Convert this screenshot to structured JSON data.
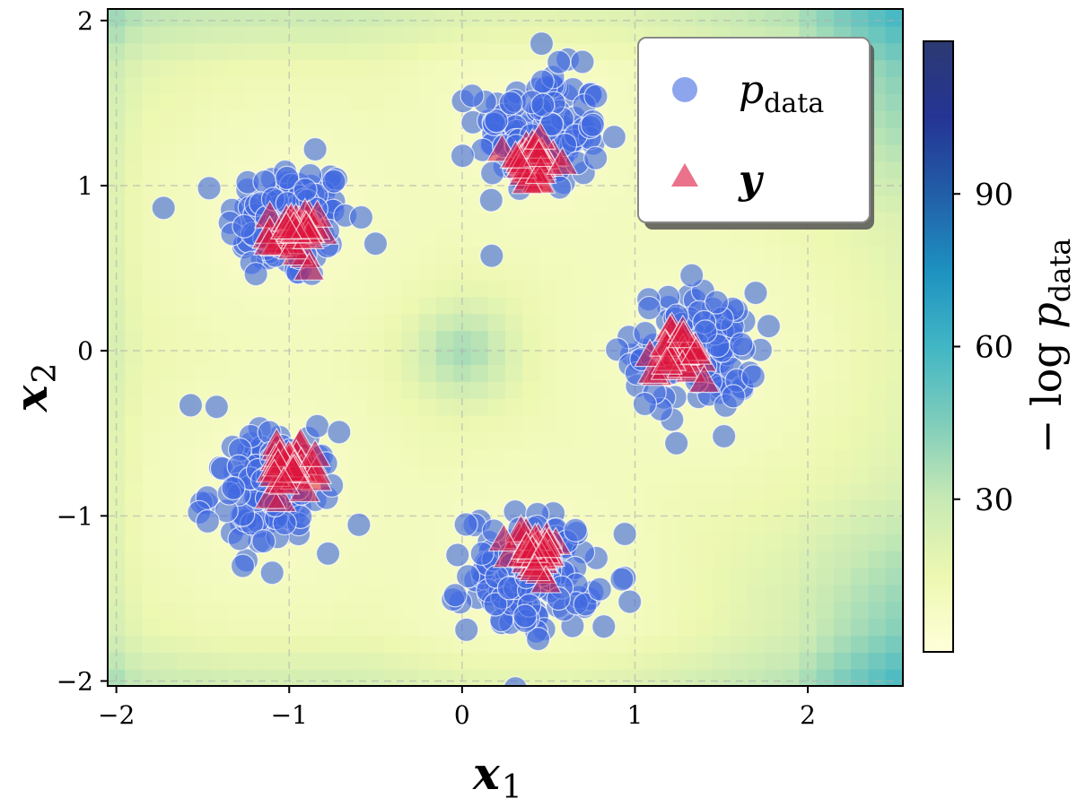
{
  "chart_data": {
    "type": "scatter",
    "xlabel": "x",
    "xlabel_sub": "1",
    "ylabel": "x",
    "ylabel_sub": "2",
    "xlim": [
      -2.05,
      2.55
    ],
    "ylim": [
      -2.03,
      2.07
    ],
    "xticks": [
      -2,
      -1,
      0,
      1,
      2
    ],
    "yticks": [
      -2,
      -1,
      0,
      1,
      2
    ],
    "xtick_labels": [
      "−2",
      "−1",
      "0",
      "1",
      "2"
    ],
    "ytick_labels": [
      "−2",
      "−1",
      "0",
      "1",
      "2"
    ],
    "grid": true,
    "legend_position": "top-right",
    "background": {
      "quantity": "−log p_data",
      "colormap": "YlGnBu",
      "range": [
        0,
        120
      ]
    },
    "colorbar": {
      "label_prefix": "− log ",
      "label_p": "p",
      "label_sub": "data",
      "ticks": [
        30,
        60,
        90
      ],
      "range": [
        0,
        120
      ]
    },
    "series": [
      {
        "name": "p_data",
        "legend_text": "p",
        "legend_sub": "data",
        "marker": "circle",
        "color": "#4169e1",
        "clusters": [
          {
            "center": [
              -1.0,
              0.78
            ],
            "spread": 0.2
          },
          {
            "center": [
              0.45,
              1.33
            ],
            "spread": 0.2
          },
          {
            "center": [
              1.35,
              0.0
            ],
            "spread": 0.2
          },
          {
            "center": [
              -1.1,
              -0.85
            ],
            "spread": 0.2
          },
          {
            "center": [
              0.4,
              -1.35
            ],
            "spread": 0.2
          }
        ],
        "outliers": [
          [
            -1.57,
            -0.33
          ],
          [
            -1.42,
            -0.34
          ],
          [
            0.46,
            1.86
          ],
          [
            -0.85,
            1.22
          ],
          [
            0.97,
            -1.52
          ],
          [
            -0.04,
            -1.48
          ],
          [
            0.82,
            -1.67
          ],
          [
            1.24,
            -0.56
          ]
        ]
      },
      {
        "name": "y",
        "legend_text": "y",
        "marker": "triangle",
        "color": "#dc143c",
        "clusters": [
          {
            "center": [
              -0.98,
              0.72
            ],
            "spread": 0.07
          },
          {
            "center": [
              0.4,
              1.15
            ],
            "spread": 0.07
          },
          {
            "center": [
              1.25,
              0.02
            ],
            "spread": 0.07
          },
          {
            "center": [
              -1.0,
              -0.72
            ],
            "spread": 0.07
          },
          {
            "center": [
              0.42,
              -1.2
            ],
            "spread": 0.07
          }
        ],
        "outliers": [
          [
            0.58,
            1.15
          ],
          [
            1.4,
            -0.17
          ],
          [
            -0.85,
            -0.62
          ]
        ]
      }
    ]
  }
}
